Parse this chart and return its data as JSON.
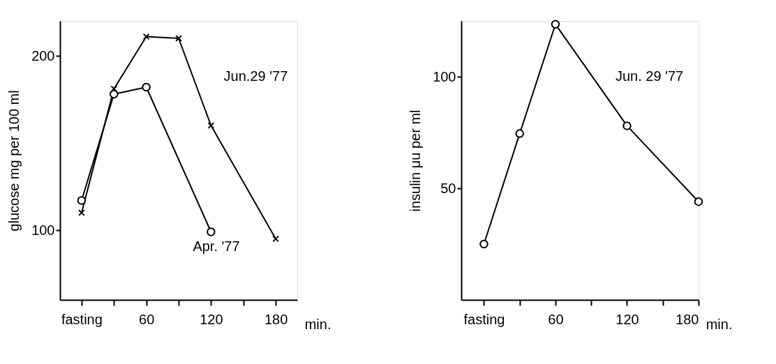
{
  "chart_data": [
    {
      "type": "line",
      "xlabel": "min.",
      "ylabel": "glucose   mg per 100 ml",
      "series": [
        {
          "name": "Jun.29 '77",
          "color": "#000000",
          "marker": "cross",
          "x": [
            0,
            30,
            60,
            90,
            120,
            180
          ],
          "values": [
            110,
            181,
            211,
            210,
            160,
            95
          ]
        },
        {
          "name": "Apr. '77",
          "color": "#000000",
          "marker": "circle",
          "x": [
            0,
            30,
            60,
            120
          ],
          "values": [
            117,
            178,
            182,
            99
          ]
        }
      ],
      "xlim": [
        -20,
        200
      ],
      "xticks": [
        {
          "value": 0,
          "label": "fasting"
        },
        {
          "value": 30,
          "label": null
        },
        60,
        {
          "value": 90,
          "label": null
        },
        120,
        {
          "value": 150,
          "label": null
        },
        180
      ],
      "ylim": [
        60,
        220
      ],
      "yticks": [
        100,
        200
      ],
      "grid": false
    },
    {
      "type": "line",
      "xlabel": "min.",
      "ylabel": "insulin   μu per ml",
      "x": [
        0,
        30,
        60,
        120,
        180
      ],
      "series": [
        {
          "name": "Jun. 29 '77",
          "color": "#000000",
          "marker": "circle",
          "values": [
            25,
            74.5,
            123.5,
            78,
            44
          ]
        }
      ],
      "xlim": [
        -19,
        180
      ],
      "xticks": [
        {
          "value": 0,
          "label": "fasting"
        },
        {
          "value": 30,
          "label": null
        },
        60,
        {
          "value": 90,
          "label": null
        },
        120,
        {
          "value": 150,
          "label": null
        },
        180
      ],
      "ylim": [
        0,
        125
      ],
      "yticks": [
        50,
        100
      ],
      "grid": false
    }
  ]
}
